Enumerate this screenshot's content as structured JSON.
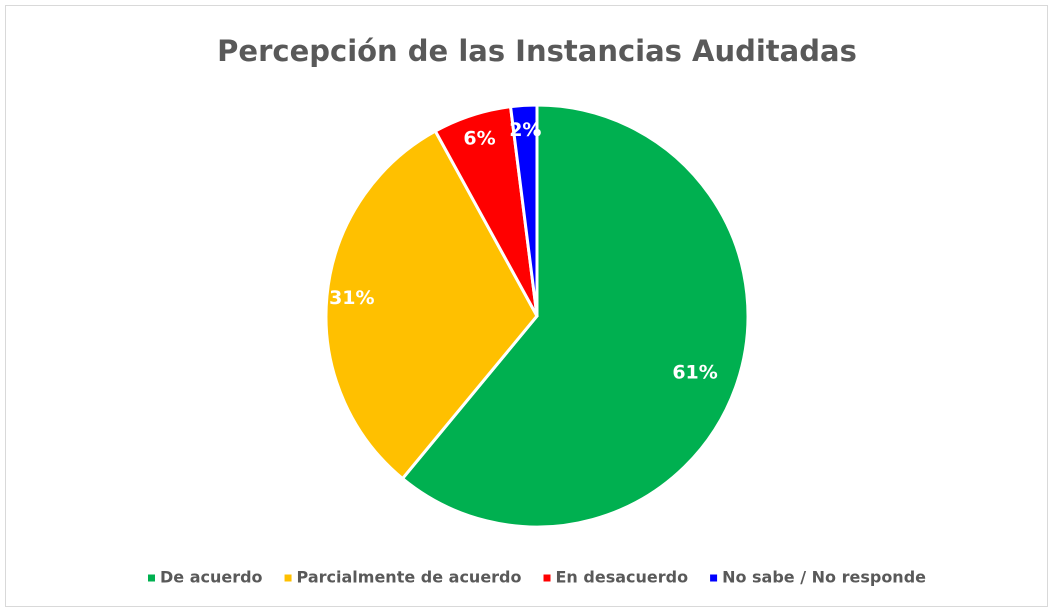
{
  "chart_data": {
    "type": "pie",
    "title": "Percepción de las Instancias Auditadas",
    "categories": [
      "De acuerdo",
      "Parcialmente de acuerdo",
      "En desacuerdo",
      "No sabe / No responde"
    ],
    "values": [
      61,
      31,
      6,
      2
    ],
    "value_labels": [
      "61%",
      "31%",
      "6%",
      "2%"
    ],
    "colors": [
      "#00b050",
      "#ffc000",
      "#ff0000",
      "#0000ff"
    ],
    "legend": "bottom"
  }
}
